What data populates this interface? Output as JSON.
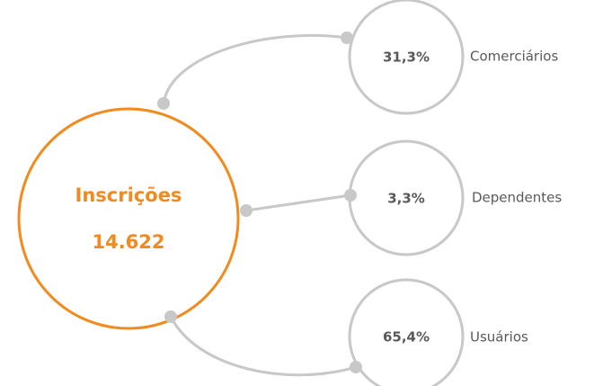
{
  "center": {
    "label": "Inscrições",
    "value": "14.622"
  },
  "nodes": [
    {
      "value": "31,3%",
      "label": "Comerciários"
    },
    {
      "value": "3,3%",
      "label": "Dependentes"
    },
    {
      "value": "65,4%",
      "label": "Usuários"
    }
  ]
}
